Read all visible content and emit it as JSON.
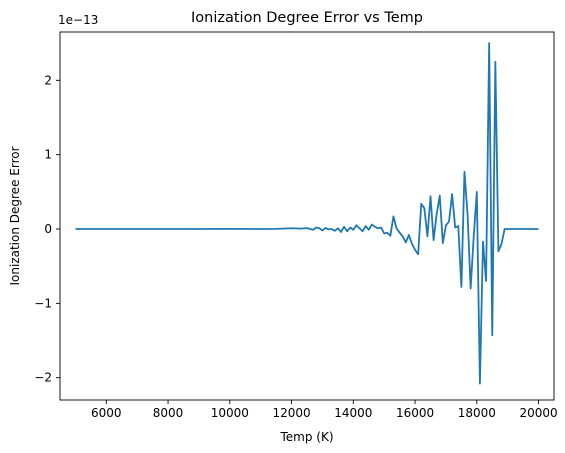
{
  "chart_data": {
    "type": "line",
    "title": "Ionization Degree Error vs Temp",
    "xlabel": "Temp (K)",
    "ylabel": "Ionization Degree Error",
    "scale_label": "1e−13",
    "xlim": [
      4500,
      20500
    ],
    "ylim": [
      -2.3,
      2.65
    ],
    "xticks": [
      6000,
      8000,
      10000,
      12000,
      14000,
      16000,
      18000,
      20000
    ],
    "xtick_labels": [
      "6000",
      "8000",
      "10000",
      "12000",
      "14000",
      "16000",
      "18000",
      "20000"
    ],
    "yticks": [
      -2,
      -1,
      0,
      1,
      2
    ],
    "ytick_labels": [
      "−2",
      "−1",
      "0",
      "1",
      "2"
    ],
    "grid": false,
    "color": "#1f77b4",
    "series": [
      {
        "x": [
          5000,
          6000,
          7000,
          8000,
          9000,
          10000,
          11000,
          11500,
          12000,
          12300,
          12500,
          12700,
          12800,
          12900,
          13000,
          13100,
          13200,
          13300,
          13400,
          13500,
          13600,
          13700,
          13800,
          13900,
          14000,
          14100,
          14200,
          14300,
          14400,
          14500,
          14600,
          14700,
          14800,
          14900,
          15000,
          15100,
          15200,
          15300,
          15400,
          15500,
          15600,
          15700,
          15800,
          15900,
          16000,
          16100,
          16200,
          16300,
          16400,
          16500,
          16600,
          16700,
          16800,
          16900,
          17000,
          17100,
          17200,
          17300,
          17400,
          17500,
          17600,
          17700,
          17800,
          17900,
          18000,
          18100,
          18200,
          18300,
          18400,
          18500,
          18600,
          18700,
          18800,
          18900,
          19000,
          19100,
          19200,
          19300,
          19400,
          19500,
          19600,
          19700,
          19800,
          19900,
          20000
        ],
        "y": [
          0,
          0,
          0,
          0,
          0,
          0.002,
          0,
          0.002,
          0.01,
          0.005,
          0.012,
          -0.01,
          0.02,
          0.01,
          -0.02,
          0.015,
          -0.005,
          0,
          -0.025,
          0.01,
          -0.04,
          0.03,
          -0.03,
          0.02,
          -0.01,
          0.05,
          0.01,
          -0.03,
          0.04,
          -0.01,
          0.06,
          0.03,
          0.01,
          0.02,
          -0.06,
          -0.05,
          -0.09,
          0.17,
          0.01,
          -0.05,
          -0.1,
          -0.18,
          -0.08,
          -0.2,
          -0.28,
          -0.34,
          0.34,
          0.28,
          -0.1,
          0.44,
          -0.15,
          0.2,
          0.45,
          -0.19,
          0.05,
          0.1,
          0.47,
          0.02,
          0.04,
          -0.78,
          0.77,
          0.2,
          -0.8,
          -0.1,
          0.5,
          -2.08,
          -0.17,
          -0.7,
          2.5,
          -1.43,
          2.25,
          -0.3,
          -0.2,
          0,
          0,
          0,
          0,
          0,
          0,
          0,
          0,
          0,
          0,
          0,
          0
        ]
      }
    ]
  }
}
